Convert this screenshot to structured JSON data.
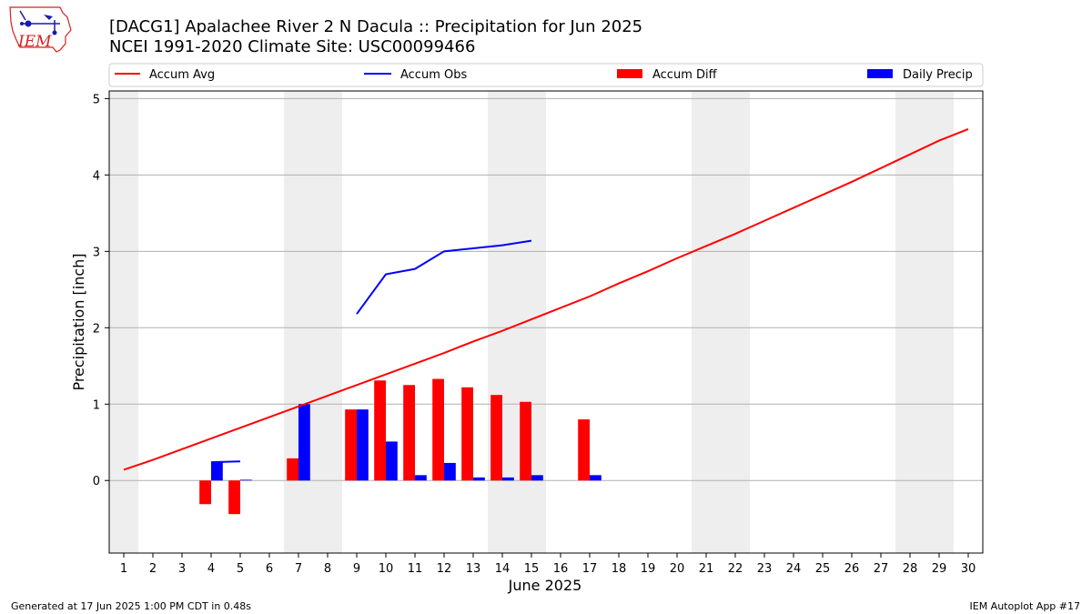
{
  "header": {
    "title_line1": "[DACG1] Apalachee River 2 N Dacula :: Precipitation for Jun 2025",
    "title_line2": "NCEI 1991-2020 Climate Site: USC00099466",
    "logo_text": "IEM"
  },
  "footer": {
    "generated": "Generated at 17 Jun 2025 1:00 PM CDT in 0.48s",
    "app": "IEM Autoplot App #17"
  },
  "colors": {
    "accum_avg": "#ff0000",
    "accum_obs": "#0000ff",
    "accum_diff": "#ff0000",
    "daily_precip": "#0000ff",
    "weekend_band": "#eeeeee",
    "grid": "#b0b0b0"
  },
  "chart_data": {
    "type": "bar",
    "xlabel": "June 2025",
    "ylabel": "Precipitation [inch]",
    "ylim": [
      -0.95,
      5.1
    ],
    "yticks": [
      0,
      1,
      2,
      3,
      4,
      5
    ],
    "days": [
      1,
      2,
      3,
      4,
      5,
      6,
      7,
      8,
      9,
      10,
      11,
      12,
      13,
      14,
      15,
      16,
      17,
      18,
      19,
      20,
      21,
      22,
      23,
      24,
      25,
      26,
      27,
      28,
      29,
      30
    ],
    "weekend_days": [
      1,
      7,
      8,
      14,
      15,
      21,
      22,
      28,
      29
    ],
    "legend": {
      "placement": "top",
      "items": [
        {
          "label": "Accum Avg",
          "kind": "line",
          "color_key": "accum_avg"
        },
        {
          "label": "Accum Obs",
          "kind": "line",
          "color_key": "accum_obs"
        },
        {
          "label": "Accum Diff",
          "kind": "bar",
          "color_key": "accum_diff"
        },
        {
          "label": "Daily Precip",
          "kind": "bar",
          "color_key": "daily_precip"
        }
      ]
    },
    "series": [
      {
        "name": "Accum Avg",
        "kind": "line",
        "x": [
          1,
          2,
          3,
          4,
          5,
          6,
          7,
          8,
          9,
          10,
          11,
          12,
          13,
          14,
          15,
          16,
          17,
          18,
          19,
          20,
          21,
          22,
          23,
          24,
          25,
          26,
          27,
          28,
          29,
          30
        ],
        "values": [
          0.14,
          0.27,
          0.41,
          0.55,
          0.69,
          0.83,
          0.97,
          1.11,
          1.25,
          1.39,
          1.53,
          1.67,
          1.82,
          1.96,
          2.11,
          2.26,
          2.41,
          2.58,
          2.74,
          2.91,
          3.07,
          3.23,
          3.4,
          3.57,
          3.74,
          3.91,
          4.09,
          4.27,
          4.45,
          4.6
        ]
      },
      {
        "name": "Accum Obs",
        "kind": "line",
        "segments": [
          {
            "x": [
              4,
              5
            ],
            "values": [
              0.24,
              0.25
            ]
          },
          {
            "x": [
              9,
              10,
              11,
              12,
              13,
              14,
              15
            ],
            "values": [
              2.18,
              2.7,
              2.77,
              3.0,
              3.04,
              3.08,
              3.14
            ]
          }
        ]
      },
      {
        "name": "Accum Diff",
        "kind": "bar",
        "x": [
          4,
          5,
          7,
          9,
          10,
          11,
          12,
          13,
          14,
          15,
          17
        ],
        "values": [
          -0.31,
          -0.44,
          0.29,
          0.93,
          1.31,
          1.25,
          1.33,
          1.22,
          1.12,
          1.03,
          0.8
        ]
      },
      {
        "name": "Daily Precip",
        "kind": "bar",
        "x": [
          4,
          5,
          7,
          9,
          10,
          11,
          12,
          13,
          14,
          15,
          17
        ],
        "values": [
          0.24,
          0.01,
          1.0,
          0.93,
          0.51,
          0.07,
          0.23,
          0.04,
          0.04,
          0.07,
          0.07
        ]
      }
    ]
  }
}
